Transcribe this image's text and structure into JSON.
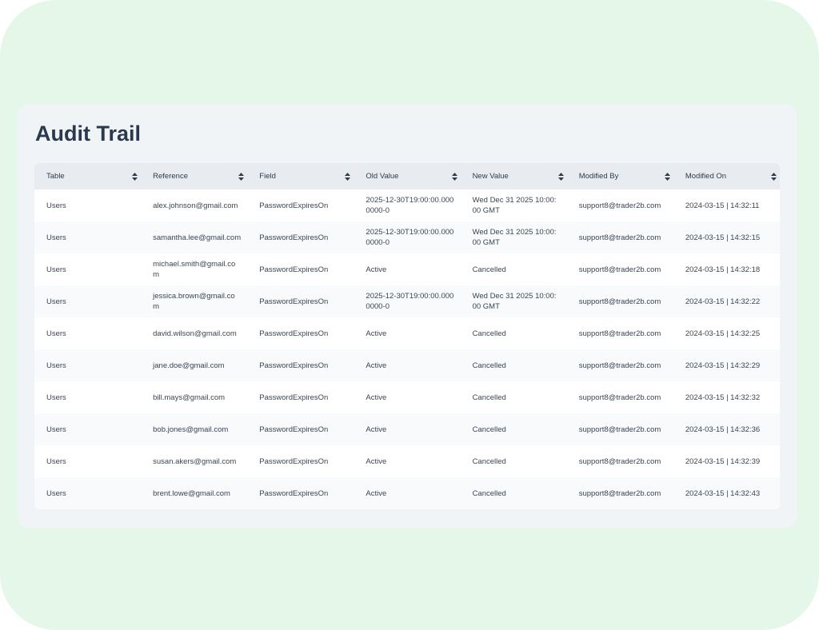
{
  "header": {
    "title": "Audit Trail"
  },
  "table": {
    "columns": [
      "Table",
      "Reference",
      "Field",
      "Old Value",
      "New Value",
      "Modified By",
      "Modified On"
    ],
    "rows": [
      [
        "Users",
        "alex.johnson@gmail.com",
        "PasswordExpiresOn",
        "2025-12-30T19:00:00.0000000-0",
        "Wed Dec 31 2025 10:00:00 GMT",
        "support8@trader2b.com",
        "2024-03-15 | 14:32:11"
      ],
      [
        "Users",
        "samantha.lee@gmail.com",
        "PasswordExpiresOn",
        "2025-12-30T19:00:00.0000000-0",
        "Wed Dec 31 2025 10:00:00 GMT",
        "support8@trader2b.com",
        "2024-03-15 | 14:32:15"
      ],
      [
        "Users",
        "michael.smith@gmail.com",
        "PasswordExpiresOn",
        "Active",
        "Cancelled",
        "support8@trader2b.com",
        "2024-03-15 | 14:32:18"
      ],
      [
        "Users",
        "jessica.brown@gmail.com",
        "PasswordExpiresOn",
        "2025-12-30T19:00:00.0000000-0",
        "Wed Dec 31 2025 10:00:00 GMT",
        "support8@trader2b.com",
        "2024-03-15 | 14:32:22"
      ],
      [
        "Users",
        "david.wilson@gmail.com",
        "PasswordExpiresOn",
        "Active",
        "Cancelled",
        "support8@trader2b.com",
        "2024-03-15 | 14:32:25"
      ],
      [
        "Users",
        "jane.doe@gmail.com",
        "PasswordExpiresOn",
        "Active",
        "Cancelled",
        "support8@trader2b.com",
        "2024-03-15 | 14:32:29"
      ],
      [
        "Users",
        "bill.mays@gmail.com",
        "PasswordExpiresOn",
        "Active",
        "Cancelled",
        "support8@trader2b.com",
        "2024-03-15 | 14:32:32"
      ],
      [
        "Users",
        "bob.jones@gmail.com",
        "PasswordExpiresOn",
        "Active",
        "Cancelled",
        "support8@trader2b.com",
        "2024-03-15 | 14:32:36"
      ],
      [
        "Users",
        "susan.akers@gmail.com",
        "PasswordExpiresOn",
        "Active",
        "Cancelled",
        "support8@trader2b.com",
        "2024-03-15 | 14:32:39"
      ],
      [
        "Users",
        "brent.lowe@gmail.com",
        "PasswordExpiresOn",
        "Active",
        "Cancelled",
        "support8@trader2b.com",
        "2024-03-15 | 14:32:43"
      ]
    ]
  }
}
